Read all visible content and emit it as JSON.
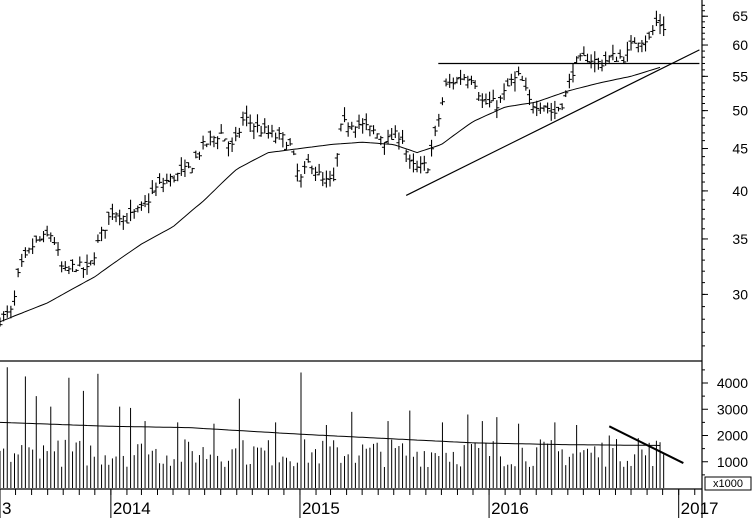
{
  "chart_data": [
    {
      "type": "ohlc",
      "scale": "log",
      "ylim": [
        25,
        68
      ],
      "xlim": [
        "2013-06-01",
        "2017-02-15"
      ],
      "x_tick_labels": [
        "3",
        "2014",
        "2015",
        "2016",
        "2017"
      ],
      "x_tick_dates": [
        "2013-06-01",
        "2014-01-01",
        "2015-01-01",
        "2016-01-01",
        "2017-01-01"
      ],
      "y_tick_labels": [
        "30",
        "35",
        "40",
        "45",
        "50",
        "55",
        "60",
        "65"
      ],
      "y_tick_values": [
        30,
        35,
        40,
        45,
        50,
        55,
        60,
        65
      ],
      "grid": false,
      "price_anchors": [
        [
          "2013-06-01",
          28
        ],
        [
          "2013-06-25",
          28.6
        ],
        [
          "2013-07-08",
          32
        ],
        [
          "2013-08-05",
          34.5
        ],
        [
          "2013-09-10",
          35.5
        ],
        [
          "2013-10-01",
          31.8
        ],
        [
          "2013-10-25",
          32.5
        ],
        [
          "2013-11-18",
          32
        ],
        [
          "2013-12-10",
          35
        ],
        [
          "2014-01-05",
          38
        ],
        [
          "2014-02-01",
          37
        ],
        [
          "2014-03-01",
          38
        ],
        [
          "2014-04-01",
          40.5
        ],
        [
          "2014-05-01",
          41.5
        ],
        [
          "2014-06-01",
          42.5
        ],
        [
          "2014-07-01",
          45.5
        ],
        [
          "2014-08-01",
          47
        ],
        [
          "2014-08-25",
          45
        ],
        [
          "2014-09-15",
          49
        ],
        [
          "2014-10-15",
          47.5
        ],
        [
          "2014-11-15",
          46.5
        ],
        [
          "2014-12-10",
          46
        ],
        [
          "2015-01-01",
          41
        ],
        [
          "2015-01-20",
          43.5
        ],
        [
          "2015-02-15",
          41
        ],
        [
          "2015-03-08",
          41
        ],
        [
          "2015-03-22",
          48
        ],
        [
          "2015-04-15",
          48.5
        ],
        [
          "2015-05-15",
          47.5
        ],
        [
          "2015-06-20",
          46
        ],
        [
          "2015-07-15",
          47
        ],
        [
          "2015-08-01",
          43
        ],
        [
          "2015-08-15",
          42.5
        ],
        [
          "2015-09-05",
          43
        ],
        [
          "2015-09-20",
          47
        ],
        [
          "2015-10-10",
          53.5
        ],
        [
          "2015-11-10",
          55
        ],
        [
          "2015-12-01",
          55
        ],
        [
          "2015-12-20",
          51
        ],
        [
          "2016-01-20",
          51
        ],
        [
          "2016-02-10",
          54
        ],
        [
          "2016-03-01",
          55
        ],
        [
          "2016-03-20",
          51
        ],
        [
          "2016-04-15",
          51
        ],
        [
          "2016-05-05",
          49.5
        ],
        [
          "2016-05-25",
          51.5
        ],
        [
          "2016-06-15",
          57
        ],
        [
          "2016-07-10",
          58
        ],
        [
          "2016-08-01",
          57
        ],
        [
          "2016-08-25",
          58
        ],
        [
          "2016-09-20",
          58
        ],
        [
          "2016-10-10",
          61
        ],
        [
          "2016-11-05",
          61
        ],
        [
          "2016-11-20",
          64
        ],
        [
          "2016-12-05",
          63
        ]
      ],
      "moving_average": [
        [
          "2013-06-01",
          27.8
        ],
        [
          "2013-09-01",
          29.3
        ],
        [
          "2013-12-01",
          31.5
        ],
        [
          "2014-03-01",
          34.5
        ],
        [
          "2014-05-01",
          36.2
        ],
        [
          "2014-07-01",
          39
        ],
        [
          "2014-09-01",
          42.5
        ],
        [
          "2014-11-01",
          44.5
        ],
        [
          "2015-01-01",
          45
        ],
        [
          "2015-03-01",
          45.5
        ],
        [
          "2015-05-01",
          45.8
        ],
        [
          "2015-07-01",
          45.5
        ],
        [
          "2015-08-15",
          44.5
        ],
        [
          "2015-10-01",
          45.5
        ],
        [
          "2015-12-01",
          48.5
        ],
        [
          "2016-02-01",
          50.5
        ],
        [
          "2016-04-01",
          51.2
        ],
        [
          "2016-06-01",
          52.8
        ],
        [
          "2016-08-01",
          54
        ],
        [
          "2016-10-01",
          55
        ],
        [
          "2016-12-01",
          56.5
        ]
      ],
      "annotations": [
        {
          "kind": "horizontal",
          "x1": "2015-09-25",
          "x2": "2017-02-10",
          "y": 57
        },
        {
          "kind": "trendline",
          "x1": "2015-07-25",
          "y1": 39.5,
          "x2": "2017-02-10",
          "y2": 59.2
        }
      ]
    },
    {
      "type": "bar",
      "unit_label": "x1000",
      "ylim": [
        0,
        4800
      ],
      "y_tick_labels": [
        "1000",
        "2000",
        "3000",
        "4000"
      ],
      "y_tick_values": [
        1000,
        2000,
        3000,
        4000
      ],
      "base_level": 1450,
      "spikes": [
        [
          "2013-06-15",
          4600
        ],
        [
          "2013-07-20",
          4250
        ],
        [
          "2013-08-10",
          3500
        ],
        [
          "2013-09-05",
          3100
        ],
        [
          "2013-10-15",
          4200
        ],
        [
          "2013-11-10",
          3700
        ],
        [
          "2013-12-05",
          4350
        ],
        [
          "2014-01-15",
          3100
        ],
        [
          "2014-02-10",
          3050
        ],
        [
          "2014-03-05",
          2550
        ],
        [
          "2014-05-10",
          2500
        ],
        [
          "2014-07-20",
          2450
        ],
        [
          "2014-09-08",
          3400
        ],
        [
          "2014-11-15",
          2500
        ],
        [
          "2015-01-01",
          4400
        ],
        [
          "2015-02-20",
          2400
        ],
        [
          "2015-04-10",
          2900
        ],
        [
          "2015-06-20",
          2550
        ],
        [
          "2015-08-01",
          2950
        ],
        [
          "2015-10-05",
          2500
        ],
        [
          "2015-11-20",
          2800
        ],
        [
          "2015-12-20",
          2550
        ],
        [
          "2016-01-15",
          2700
        ],
        [
          "2016-03-01",
          2450
        ],
        [
          "2016-05-10",
          2500
        ],
        [
          "2016-06-15",
          2400
        ],
        [
          "2016-08-20",
          2000
        ],
        [
          "2016-10-15",
          1900
        ],
        [
          "2016-11-20",
          1800
        ]
      ],
      "moving_average": [
        [
          "2013-06-01",
          2500
        ],
        [
          "2014-01-01",
          2350
        ],
        [
          "2014-06-01",
          2300
        ],
        [
          "2015-01-01",
          2050
        ],
        [
          "2015-06-01",
          1900
        ],
        [
          "2015-12-01",
          1720
        ],
        [
          "2016-06-01",
          1650
        ],
        [
          "2016-12-01",
          1620
        ]
      ],
      "annotations": [
        {
          "kind": "trendline",
          "x1": "2016-08-20",
          "y1": 2350,
          "x2": "2017-01-10",
          "y2": 950
        }
      ]
    }
  ]
}
